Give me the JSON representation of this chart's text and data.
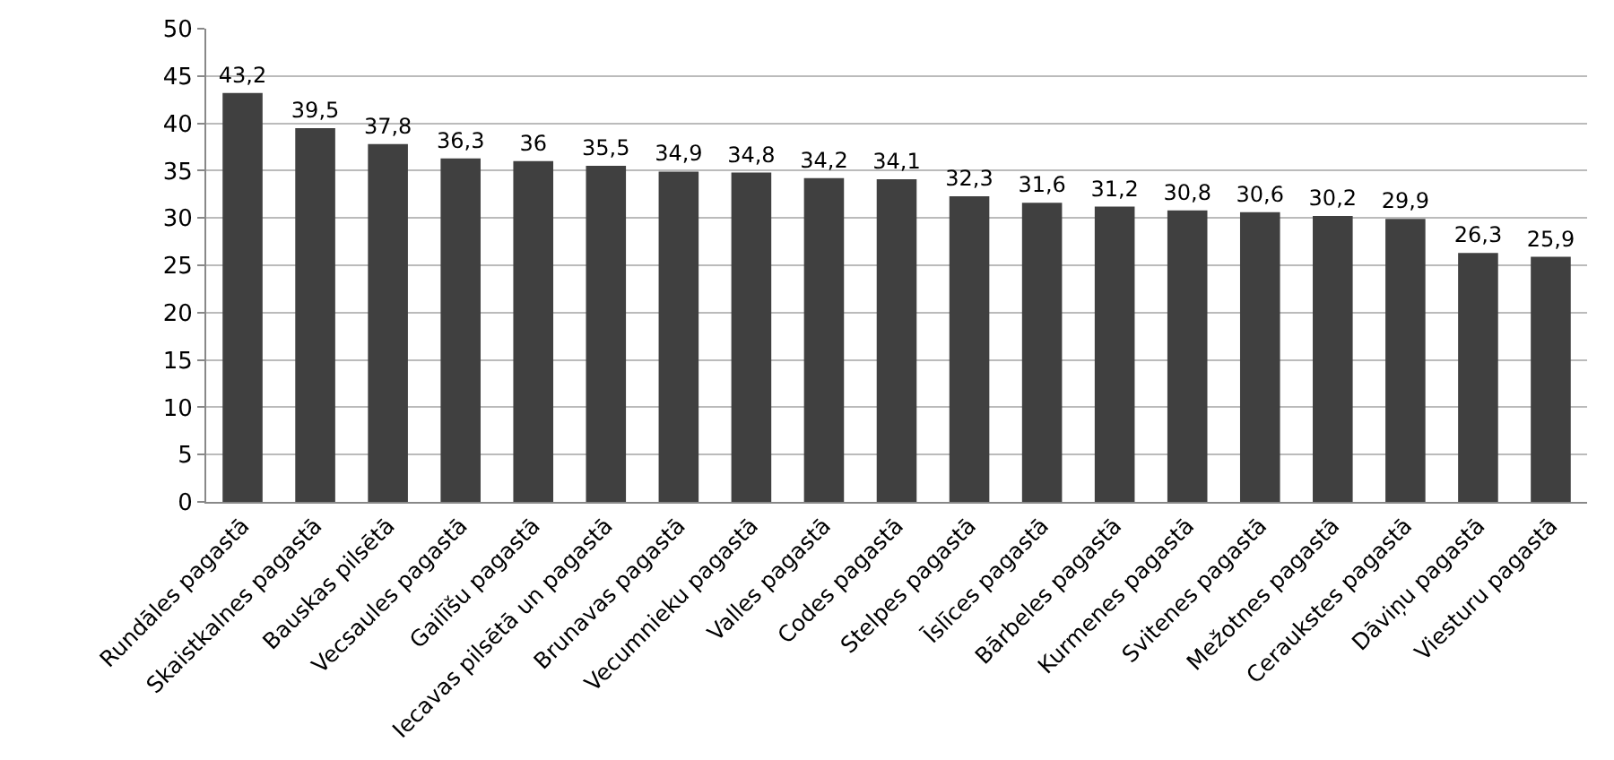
{
  "chart_data": {
    "type": "bar",
    "categories": [
      "Rundāles pagastā",
      "Skaistkalnes pagastā",
      "Bauskas pilsētā",
      "Vecsaules pagastā",
      "Gailīšu pagastā",
      "Iecavas pilsētā un pagastā",
      "Brunavas pagastā",
      "Vecumnieku pagastā",
      "Valles pagastā",
      "Codes pagastā",
      "Stelpes pagastā",
      "Īslīces pagastā",
      "Bārbeles pagastā",
      "Kurmenes pagastā",
      "Svitenes pagastā",
      "Mežotnes pagastā",
      "Ceraukstes pagastā",
      "Dāviņu pagastā",
      "Viesturu pagastā"
    ],
    "values": [
      43.2,
      39.5,
      37.8,
      36.3,
      36,
      35.5,
      34.9,
      34.8,
      34.2,
      34.1,
      32.3,
      31.6,
      31.2,
      30.8,
      30.6,
      30.2,
      29.9,
      26.3,
      25.9
    ],
    "value_labels": [
      "43,2",
      "39,5",
      "37,8",
      "36,3",
      "36",
      "35,5",
      "34,9",
      "34,8",
      "34,2",
      "34,1",
      "32,3",
      "31,6",
      "31,2",
      "30,8",
      "30,6",
      "30,2",
      "29,9",
      "26,3",
      "25,9"
    ],
    "color": "#404040",
    "ylim": [
      0,
      50
    ],
    "yticks": [
      0,
      5,
      10,
      15,
      20,
      25,
      30,
      35,
      40,
      45,
      50
    ],
    "grid": "y"
  }
}
